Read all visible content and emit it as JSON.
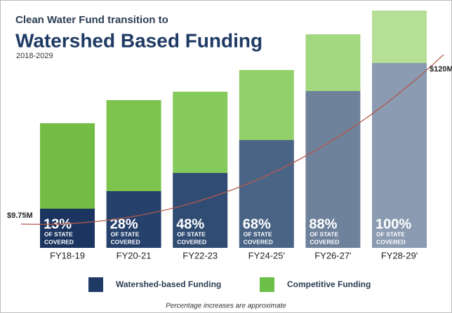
{
  "chart_data": {
    "type": "stacked_bar",
    "title": "Clean Water Fund transition to",
    "subtitle": "Watershed Based Funding",
    "date_range": "2018-2029",
    "categories": [
      "FY18-19",
      "FY20-21",
      "FY22-23",
      "FY24-25'",
      "FY26-27'",
      "FY28-29'"
    ],
    "series": [
      {
        "name": "Watershed-based Funding",
        "color": "#1f3a64",
        "colors": [
          "#1b3560",
          "#26416b",
          "#304c73",
          "#4a6486",
          "#6f829c",
          "#8a9bb2"
        ],
        "values": [
          56,
          81,
          107,
          154,
          224,
          264
        ]
      },
      {
        "name": "Competitive Funding",
        "color": "#6cc04a",
        "colors": [
          "#74bd45",
          "#7dc44f",
          "#86ca5b",
          "#92d06a",
          "#a3d780",
          "#b5de96"
        ],
        "values": [
          122,
          130,
          116,
          100,
          81,
          75
        ]
      }
    ],
    "coverage_labels": [
      "13%",
      "28%",
      "48%",
      "68%",
      "88%",
      "100%"
    ],
    "coverage_note": [
      "OF STATE",
      "COVERED"
    ],
    "ylim": [
      0,
      340
    ],
    "trend": {
      "color": "#b5584a",
      "values": [
        9.75,
        120
      ],
      "value_labels": [
        "$9.75M",
        "$120M"
      ],
      "axis": "y2"
    },
    "y2lim": [
      -5.74,
      149.2
    ],
    "footnote": "Percentage increases are approximate"
  }
}
